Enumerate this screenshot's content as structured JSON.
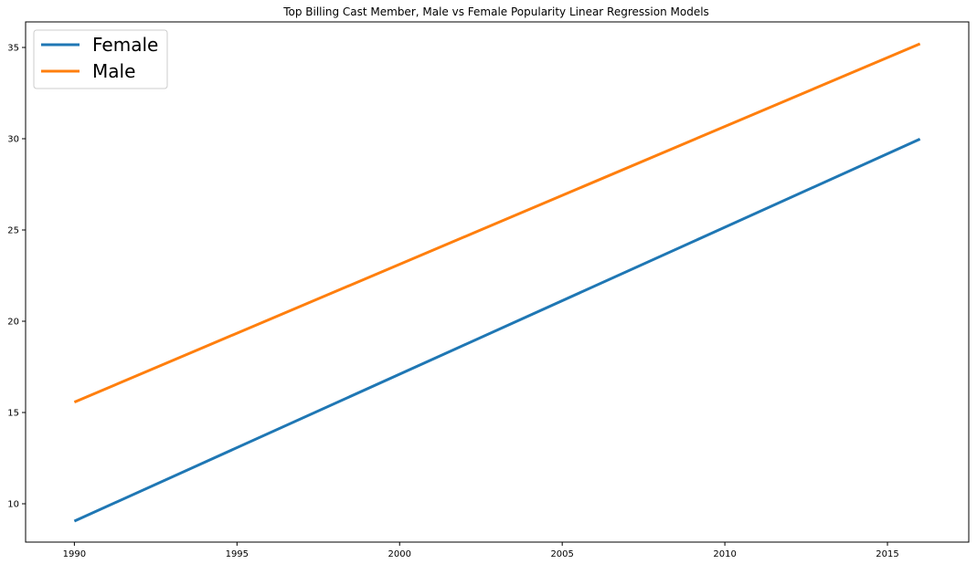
{
  "chart_data": {
    "type": "line",
    "title": "Top Billing Cast Member, Male vs Female Popularity Linear Regression Models",
    "xlabel": "",
    "ylabel": "",
    "xlim": [
      1988.5,
      2017.5
    ],
    "ylim": [
      7.9,
      36.4
    ],
    "x_ticks": [
      1990,
      1995,
      2000,
      2005,
      2010,
      2015
    ],
    "y_ticks": [
      10,
      15,
      20,
      25,
      30,
      35
    ],
    "grid": false,
    "legend_position": "top-left",
    "series": [
      {
        "name": "Female",
        "color": "#1f77b4",
        "x": [
          1990,
          2016
        ],
        "y": [
          9.05,
          29.98
        ]
      },
      {
        "name": "Male",
        "color": "#ff7f0e",
        "x": [
          1990,
          2016
        ],
        "y": [
          15.57,
          35.2
        ]
      }
    ]
  }
}
